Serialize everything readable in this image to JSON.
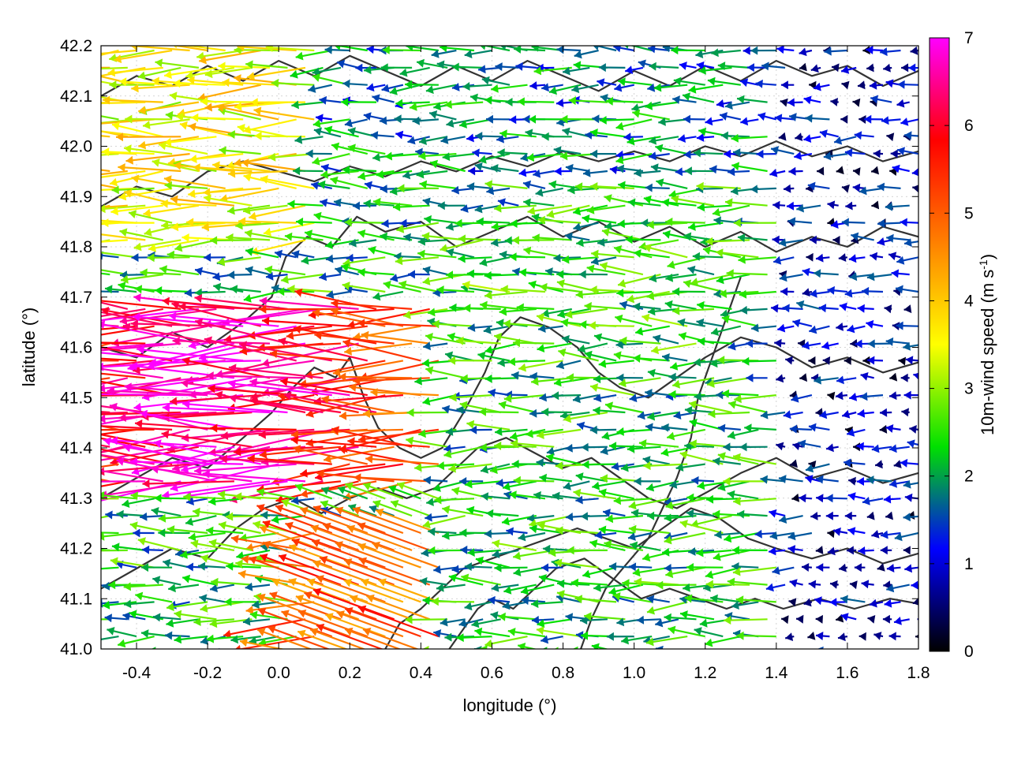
{
  "chart_data": {
    "type": "vector-field",
    "xlabel": "longitude (°)",
    "ylabel": "latitude (°)",
    "xlim": [
      -0.5,
      1.8
    ],
    "ylim": [
      41.0,
      42.2
    ],
    "xticks": [
      "-0.4",
      "-0.2",
      "0.0",
      "0.2",
      "0.4",
      "0.6",
      "0.8",
      "1.0",
      "1.2",
      "1.4",
      "1.6",
      "1.8"
    ],
    "xtick_values": [
      -0.4,
      -0.2,
      0.0,
      0.2,
      0.4,
      0.6,
      0.8,
      1.0,
      1.2,
      1.4,
      1.6,
      1.8
    ],
    "yticks": [
      "41.0",
      "41.1",
      "41.2",
      "41.3",
      "41.4",
      "41.5",
      "41.6",
      "41.7",
      "41.8",
      "41.9",
      "42.0",
      "42.1",
      "42.2"
    ],
    "ytick_values": [
      41.0,
      41.1,
      41.2,
      41.3,
      41.4,
      41.5,
      41.6,
      41.7,
      41.8,
      41.9,
      42.0,
      42.1,
      42.2
    ],
    "grid": true,
    "colorbar": {
      "label_main": "10m-wind speed (m s",
      "label_sup": "-1",
      "label_close": ")",
      "range": [
        0,
        7
      ],
      "ticks": [
        "0",
        "1",
        "2",
        "3",
        "4",
        "5",
        "6",
        "7"
      ],
      "tick_values": [
        0,
        1,
        2,
        3,
        4,
        5,
        6,
        7
      ],
      "colors": [
        "#000000",
        "#0000ff",
        "#00e000",
        "#ffff00",
        "#ff8000",
        "#ff0000",
        "#ff00ff"
      ]
    },
    "wind_direction": "predominantly easterly (arrows point west)",
    "wind_speed_regions": [
      {
        "region": "west, 41.35-41.65 lat",
        "speed_range": [
          4.5,
          7.0
        ]
      },
      {
        "region": "southwest, 41.05-41.25 lat, 0.1-0.4 lon",
        "speed_range": [
          4.5,
          6.5
        ]
      },
      {
        "region": "center",
        "speed_range": [
          1.5,
          3.5
        ]
      },
      {
        "region": "east, lon > 1.4",
        "speed_range": [
          0.2,
          1.5
        ]
      }
    ],
    "contour_color": "#333333",
    "contour_lines": [
      [
        [
          -0.5,
          41.88
        ],
        [
          -0.4,
          41.92
        ],
        [
          -0.3,
          41.9
        ],
        [
          -0.2,
          41.95
        ],
        [
          -0.1,
          41.97
        ],
        [
          0.0,
          41.95
        ],
        [
          0.1,
          41.93
        ],
        [
          0.2,
          41.96
        ],
        [
          0.3,
          41.94
        ],
        [
          0.4,
          41.97
        ],
        [
          0.5,
          41.95
        ],
        [
          0.6,
          41.98
        ],
        [
          0.7,
          41.96
        ],
        [
          0.8,
          41.99
        ],
        [
          0.9,
          41.97
        ],
        [
          1.0,
          41.99
        ],
        [
          1.1,
          41.97
        ],
        [
          1.2,
          42.0
        ],
        [
          1.3,
          41.98
        ],
        [
          1.4,
          42.01
        ],
        [
          1.5,
          41.98
        ],
        [
          1.6,
          42.0
        ],
        [
          1.7,
          41.97
        ],
        [
          1.8,
          41.99
        ]
      ],
      [
        [
          -0.5,
          41.6
        ],
        [
          -0.4,
          41.58
        ],
        [
          -0.3,
          41.63
        ],
        [
          -0.2,
          41.6
        ],
        [
          -0.1,
          41.65
        ],
        [
          -0.02,
          41.7
        ],
        [
          0.02,
          41.78
        ],
        [
          0.08,
          41.82
        ],
        [
          0.15,
          41.8
        ],
        [
          0.22,
          41.86
        ],
        [
          0.3,
          41.83
        ],
        [
          0.4,
          41.85
        ],
        [
          0.5,
          41.8
        ],
        [
          0.6,
          41.83
        ],
        [
          0.7,
          41.86
        ],
        [
          0.8,
          41.82
        ],
        [
          0.9,
          41.85
        ],
        [
          1.0,
          41.81
        ],
        [
          1.1,
          41.84
        ],
        [
          1.2,
          41.8
        ],
        [
          1.3,
          41.83
        ],
        [
          1.4,
          41.79
        ],
        [
          1.5,
          41.82
        ],
        [
          1.6,
          41.8
        ],
        [
          1.7,
          41.84
        ],
        [
          1.8,
          41.82
        ]
      ],
      [
        [
          -0.5,
          41.3
        ],
        [
          -0.4,
          41.34
        ],
        [
          -0.3,
          41.38
        ],
        [
          -0.2,
          41.36
        ],
        [
          -0.1,
          41.42
        ],
        [
          -0.02,
          41.47
        ],
        [
          0.04,
          41.52
        ],
        [
          0.1,
          41.56
        ],
        [
          0.16,
          41.54
        ],
        [
          0.2,
          41.58
        ],
        [
          0.24,
          41.5
        ],
        [
          0.28,
          41.44
        ],
        [
          0.34,
          41.4
        ],
        [
          0.4,
          41.38
        ],
        [
          0.46,
          41.4
        ],
        [
          0.52,
          41.47
        ],
        [
          0.58,
          41.55
        ],
        [
          0.62,
          41.62
        ],
        [
          0.68,
          41.66
        ],
        [
          0.76,
          41.64
        ],
        [
          0.84,
          41.6
        ],
        [
          0.9,
          41.55
        ],
        [
          0.96,
          41.52
        ],
        [
          1.04,
          41.5
        ],
        [
          1.12,
          41.54
        ],
        [
          1.2,
          41.58
        ],
        [
          1.3,
          41.62
        ],
        [
          1.4,
          41.6
        ],
        [
          1.5,
          41.56
        ],
        [
          1.6,
          41.58
        ],
        [
          1.7,
          41.55
        ],
        [
          1.8,
          41.57
        ]
      ],
      [
        [
          -0.5,
          41.12
        ],
        [
          -0.4,
          41.16
        ],
        [
          -0.3,
          41.2
        ],
        [
          -0.2,
          41.18
        ],
        [
          -0.12,
          41.24
        ],
        [
          -0.04,
          41.28
        ],
        [
          0.04,
          41.3
        ],
        [
          0.12,
          41.27
        ],
        [
          0.2,
          41.3
        ],
        [
          0.28,
          41.32
        ],
        [
          0.36,
          41.3
        ],
        [
          0.44,
          41.32
        ],
        [
          0.5,
          41.36
        ],
        [
          0.56,
          41.4
        ],
        [
          0.64,
          41.42
        ],
        [
          0.72,
          41.39
        ],
        [
          0.8,
          41.36
        ],
        [
          0.88,
          41.38
        ],
        [
          0.96,
          41.34
        ],
        [
          1.04,
          41.3
        ],
        [
          1.12,
          41.28
        ],
        [
          1.2,
          41.31
        ],
        [
          1.3,
          41.35
        ],
        [
          1.4,
          41.38
        ],
        [
          1.5,
          41.34
        ],
        [
          1.6,
          41.36
        ],
        [
          1.7,
          41.33
        ],
        [
          1.8,
          41.35
        ]
      ],
      [
        [
          0.3,
          41.0
        ],
        [
          0.34,
          41.05
        ],
        [
          0.4,
          41.08
        ],
        [
          0.46,
          41.12
        ],
        [
          0.52,
          41.16
        ],
        [
          0.6,
          41.18
        ],
        [
          0.68,
          41.2
        ],
        [
          0.76,
          41.22
        ],
        [
          0.84,
          41.24
        ],
        [
          0.92,
          41.22
        ],
        [
          1.0,
          41.2
        ],
        [
          1.08,
          41.24
        ],
        [
          1.16,
          41.28
        ],
        [
          1.24,
          41.26
        ],
        [
          1.32,
          41.22
        ],
        [
          1.4,
          41.2
        ],
        [
          1.5,
          41.18
        ],
        [
          1.6,
          41.2
        ],
        [
          1.7,
          41.17
        ],
        [
          1.8,
          41.19
        ]
      ],
      [
        [
          0.48,
          41.0
        ],
        [
          0.52,
          41.04
        ],
        [
          0.56,
          41.08
        ],
        [
          0.6,
          41.1
        ],
        [
          0.66,
          41.08
        ],
        [
          0.72,
          41.12
        ],
        [
          0.78,
          41.16
        ],
        [
          0.86,
          41.18
        ],
        [
          0.94,
          41.14
        ],
        [
          1.02,
          41.1
        ],
        [
          1.1,
          41.12
        ],
        [
          1.18,
          41.1
        ],
        [
          1.26,
          41.08
        ],
        [
          1.34,
          41.1
        ],
        [
          1.42,
          41.08
        ],
        [
          1.52,
          41.1
        ],
        [
          1.62,
          41.08
        ],
        [
          1.72,
          41.1
        ],
        [
          1.8,
          41.09
        ]
      ],
      [
        [
          -0.5,
          42.1
        ],
        [
          -0.4,
          42.14
        ],
        [
          -0.3,
          42.12
        ],
        [
          -0.2,
          42.16
        ],
        [
          -0.1,
          42.13
        ],
        [
          0.0,
          42.17
        ],
        [
          0.1,
          42.14
        ],
        [
          0.2,
          42.18
        ],
        [
          0.3,
          42.15
        ],
        [
          0.4,
          42.12
        ],
        [
          0.5,
          42.16
        ],
        [
          0.6,
          42.13
        ],
        [
          0.7,
          42.17
        ],
        [
          0.8,
          42.14
        ],
        [
          0.9,
          42.11
        ],
        [
          1.0,
          42.15
        ],
        [
          1.1,
          42.12
        ],
        [
          1.2,
          42.16
        ],
        [
          1.3,
          42.13
        ],
        [
          1.4,
          42.17
        ],
        [
          1.5,
          42.14
        ],
        [
          1.6,
          42.16
        ],
        [
          1.7,
          42.12
        ],
        [
          1.8,
          42.15
        ]
      ],
      [
        [
          0.85,
          41.0
        ],
        [
          0.88,
          41.06
        ],
        [
          0.92,
          41.12
        ],
        [
          0.98,
          41.17
        ],
        [
          1.04,
          41.22
        ],
        [
          1.08,
          41.28
        ],
        [
          1.12,
          41.34
        ],
        [
          1.16,
          41.42
        ],
        [
          1.18,
          41.5
        ],
        [
          1.22,
          41.58
        ],
        [
          1.26,
          41.66
        ],
        [
          1.3,
          41.74
        ]
      ]
    ]
  }
}
